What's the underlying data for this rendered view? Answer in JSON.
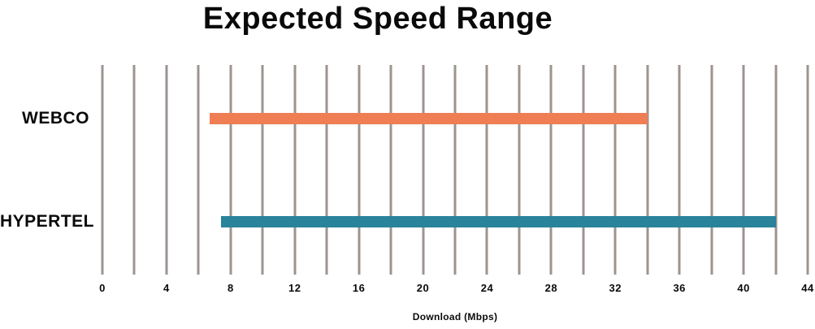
{
  "title": "Expected Speed Range",
  "chart_data": {
    "type": "bar",
    "subtype": "horizontal-range-bar",
    "title": "Expected Speed Range",
    "xlabel": "Download (Mbps)",
    "xlim": [
      0,
      44
    ],
    "x_tick_values": [
      0,
      4,
      8,
      12,
      16,
      20,
      24,
      28,
      32,
      36,
      40,
      44
    ],
    "x_tick_labels": [
      "0",
      "4",
      "8",
      "12",
      "16",
      "20",
      "24",
      "28",
      "32",
      "36",
      "40",
      "44"
    ],
    "gridline_every": 2,
    "grid": true,
    "legend": false,
    "categories": [
      "WEBCO",
      "HYPERTEL"
    ],
    "series": [
      {
        "name": "WEBCO",
        "range_min": 6.7,
        "range_max": 34,
        "color": "#ef7e55"
      },
      {
        "name": "HYPERTEL",
        "range_min": 7.4,
        "range_max": 42,
        "color": "#28839b"
      }
    ],
    "colors": {
      "gridline": "#9b9490",
      "text": "#0a0a0a",
      "background": "#ffffff"
    }
  }
}
